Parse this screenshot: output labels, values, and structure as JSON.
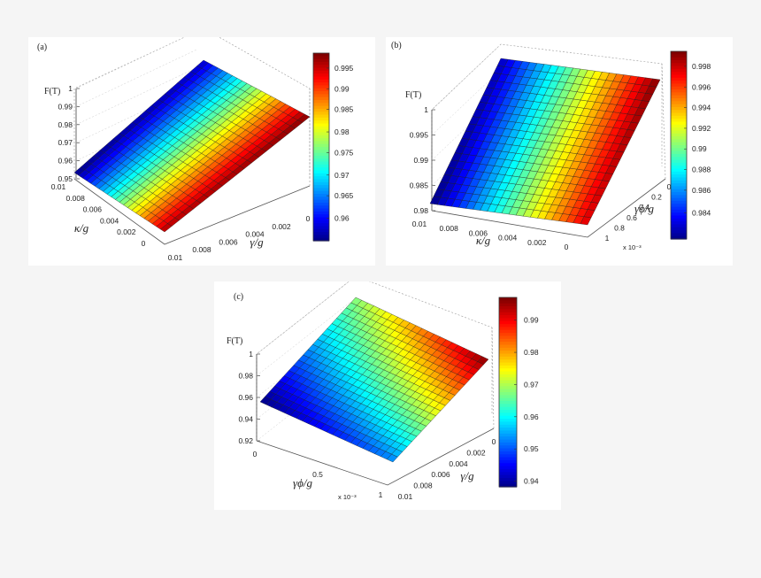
{
  "chart_data": [
    {
      "type": "surface",
      "panel_label": "(a)",
      "zlabel": "F(T)",
      "zticks": [
        "0.95",
        "0.96",
        "0.97",
        "0.98",
        "0.99",
        "1"
      ],
      "x_axis": {
        "label": "κ/g",
        "ticks": [
          "0.01",
          "0.008",
          "0.006",
          "0.004",
          "0.002",
          "0"
        ]
      },
      "y_axis": {
        "label": "γ/g",
        "ticks": [
          "0.01",
          "0.008",
          "0.006",
          "0.004",
          "0.002",
          "0"
        ],
        "multiplier": ""
      },
      "corners": {
        "kmax_gmax": 0.955,
        "kmax_gmin": 0.958,
        "kmin_gmax": 0.997,
        "kmin_gmin": 0.999
      },
      "colorbar": {
        "ticks": [
          "0.995",
          "0.99",
          "0.985",
          "0.98",
          "0.975",
          "0.97",
          "0.965",
          "0.96"
        ],
        "range": [
          0.955,
          0.999
        ]
      },
      "colormap": "jet",
      "grid": true
    },
    {
      "type": "surface",
      "panel_label": "(b)",
      "zlabel": "F(T)",
      "zticks": [
        "0.98",
        "0.985",
        "0.99",
        "0.995",
        "1"
      ],
      "x_axis": {
        "label": "κ/g",
        "ticks": [
          "0.01",
          "0.008",
          "0.006",
          "0.004",
          "0.002",
          "0"
        ]
      },
      "y_axis": {
        "label": "γϕ/g",
        "ticks": [
          "1",
          "0.8",
          "0.6",
          "0.4",
          "0.2",
          "0"
        ],
        "multiplier": "x 10⁻³"
      },
      "corners": {
        "kmax_gmax": 0.9815,
        "kmax_gmin": 0.9825,
        "kmin_gmax": 0.998,
        "kmin_gmin": 0.9995
      },
      "colorbar": {
        "ticks": [
          "0.998",
          "0.996",
          "0.994",
          "0.992",
          "0.99",
          "0.988",
          "0.986",
          "0.984"
        ],
        "range": [
          0.9815,
          0.9995
        ]
      },
      "colormap": "jet",
      "grid": true
    },
    {
      "type": "surface",
      "panel_label": "(c)",
      "zlabel": "F(T)",
      "zticks": [
        "0.92",
        "0.94",
        "0.96",
        "0.98",
        "1"
      ],
      "x_axis": {
        "label": "γϕ/g",
        "ticks": [
          "0",
          "0.5",
          "1"
        ],
        "multiplier": "x 10⁻³"
      },
      "y_axis": {
        "label": "γ/g",
        "ticks": [
          "0.01",
          "0.008",
          "0.006",
          "0.004",
          "0.002",
          "0"
        ],
        "multiplier": ""
      },
      "corners": {
        "kmax_gmax": 0.94,
        "kmax_gmin": 0.97,
        "kmin_gmax": 0.955,
        "kmin_gmin": 0.999
      },
      "colorbar": {
        "ticks": [
          "0.99",
          "0.98",
          "0.97",
          "0.96",
          "0.95",
          "0.94"
        ],
        "range": [
          0.94,
          0.999
        ]
      },
      "colormap": "jet",
      "grid": true
    }
  ]
}
